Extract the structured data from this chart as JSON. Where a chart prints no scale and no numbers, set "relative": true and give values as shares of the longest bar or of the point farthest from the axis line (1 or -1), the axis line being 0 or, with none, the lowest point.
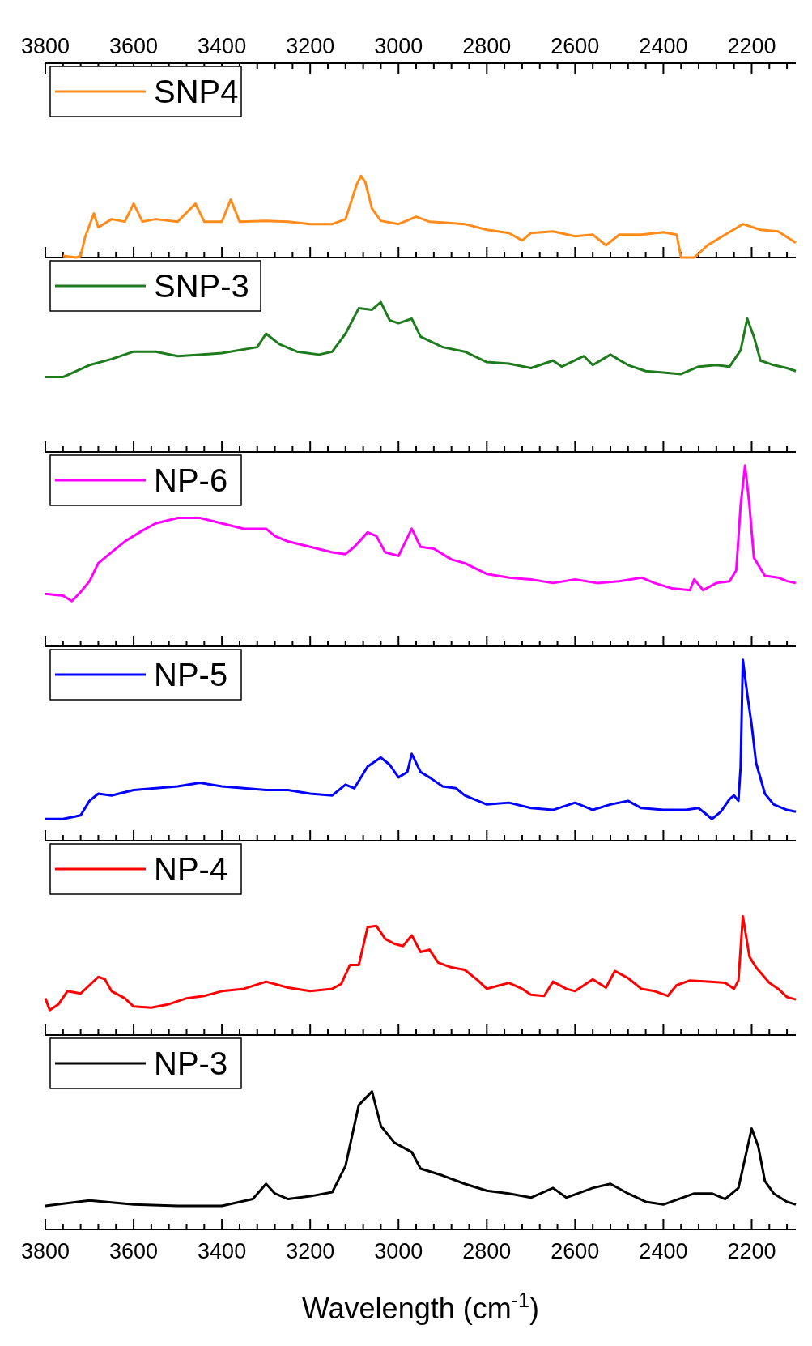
{
  "chart_data": [
    {
      "type": "line",
      "relative": true,
      "legend": "top left",
      "xlim": [
        3800,
        2100
      ],
      "xticks": [
        3800,
        {
          "value": 3760,
          "label": null
        },
        {
          "value": 3720,
          "label": null
        },
        {
          "value": 3680,
          "label": null
        },
        {
          "value": 3640,
          "label": null
        },
        3600,
        {
          "value": 3560,
          "label": null
        },
        {
          "value": 3520,
          "label": null
        },
        {
          "value": 3480,
          "label": null
        },
        {
          "value": 3440,
          "label": null
        },
        3400,
        {
          "value": 3360,
          "label": null
        },
        {
          "value": 3320,
          "label": null
        },
        {
          "value": 3280,
          "label": null
        },
        {
          "value": 3240,
          "label": null
        },
        3200,
        {
          "value": 3160,
          "label": null
        },
        {
          "value": 3120,
          "label": null
        },
        {
          "value": 3080,
          "label": null
        },
        {
          "value": 3040,
          "label": null
        },
        3000,
        {
          "value": 2960,
          "label": null
        },
        {
          "value": 2920,
          "label": null
        },
        {
          "value": 2880,
          "label": null
        },
        {
          "value": 2840,
          "label": null
        },
        2800,
        {
          "value": 2760,
          "label": null
        },
        {
          "value": 2720,
          "label": null
        },
        {
          "value": 2680,
          "label": null
        },
        {
          "value": 2640,
          "label": null
        },
        2600,
        {
          "value": 2560,
          "label": null
        },
        {
          "value": 2520,
          "label": null
        },
        {
          "value": 2480,
          "label": null
        },
        {
          "value": 2440,
          "label": null
        },
        2400,
        {
          "value": 2360,
          "label": null
        },
        {
          "value": 2320,
          "label": null
        },
        {
          "value": 2280,
          "label": null
        },
        {
          "value": 2240,
          "label": null
        },
        2200,
        {
          "value": 2160,
          "label": null
        },
        {
          "value": 2120,
          "label": null
        }
      ],
      "series": [
        {
          "name": "SNP4",
          "color": "#ff8c1a",
          "x": [
            3760,
            3730,
            3720,
            3710,
            3690,
            3680,
            3650,
            3620,
            3600,
            3580,
            3550,
            3500,
            3460,
            3440,
            3400,
            3380,
            3360,
            3300,
            3250,
            3200,
            3150,
            3120,
            3095,
            3085,
            3075,
            3060,
            3040,
            3000,
            2960,
            2930,
            2900,
            2850,
            2800,
            2750,
            2720,
            2700,
            2650,
            2600,
            2560,
            2530,
            2500,
            2450,
            2400,
            2370,
            2360,
            2330,
            2300,
            2260,
            2220,
            2180,
            2140,
            2100
          ],
          "values": [
            0.02,
            0,
            0.02,
            0.25,
            0.54,
            0.37,
            0.47,
            0.44,
            0.66,
            0.44,
            0.47,
            0.44,
            0.66,
            0.44,
            0.44,
            0.71,
            0.44,
            0.45,
            0.44,
            0.41,
            0.41,
            0.47,
            0.89,
            1,
            0.92,
            0.6,
            0.45,
            0.41,
            0.5,
            0.44,
            0.43,
            0.41,
            0.34,
            0.3,
            0.21,
            0.3,
            0.32,
            0.26,
            0.28,
            0.15,
            0.28,
            0.28,
            0.31,
            0.28,
            0,
            0,
            0.15,
            0.28,
            0.41,
            0.34,
            0.32,
            0.18
          ]
        }
      ]
    },
    {
      "type": "line",
      "relative": true,
      "legend": "top left",
      "tick_labels": false,
      "xlim": [
        3800,
        2100
      ],
      "xticks": [
        3800,
        3760,
        3720,
        3680,
        3640,
        3600,
        3560,
        3520,
        3480,
        3440,
        3400,
        3360,
        3320,
        3280,
        3240,
        3200,
        3160,
        3120,
        3080,
        3040,
        3000,
        2960,
        2920,
        2880,
        2840,
        2800,
        2760,
        2720,
        2680,
        2640,
        2600,
        2560,
        2520,
        2480,
        2440,
        2400,
        2360,
        2320,
        2280,
        2240,
        2200,
        2160,
        2120
      ],
      "series": [
        {
          "name": "SNP-3",
          "color": "#1e7b1e",
          "x": [
            3800,
            3760,
            3700,
            3650,
            3600,
            3550,
            3500,
            3450,
            3400,
            3320,
            3300,
            3270,
            3230,
            3180,
            3150,
            3120,
            3090,
            3060,
            3040,
            3020,
            3000,
            2970,
            2950,
            2900,
            2850,
            2800,
            2750,
            2700,
            2650,
            2630,
            2580,
            2560,
            2520,
            2480,
            2440,
            2400,
            2360,
            2320,
            2280,
            2250,
            2225,
            2210,
            2195,
            2180,
            2150,
            2120,
            2100
          ],
          "values": [
            0.5,
            0.5,
            0.58,
            0.62,
            0.67,
            0.67,
            0.64,
            0.65,
            0.66,
            0.7,
            0.79,
            0.72,
            0.67,
            0.65,
            0.67,
            0.79,
            0.96,
            0.95,
            1,
            0.88,
            0.86,
            0.89,
            0.77,
            0.7,
            0.67,
            0.6,
            0.59,
            0.56,
            0.61,
            0.57,
            0.64,
            0.58,
            0.65,
            0.58,
            0.54,
            0.53,
            0.52,
            0.57,
            0.58,
            0.57,
            0.68,
            0.89,
            0.77,
            0.61,
            0.58,
            0.56,
            0.54
          ]
        }
      ]
    },
    {
      "type": "line",
      "relative": true,
      "legend": "top left",
      "tick_labels": false,
      "xlim": [
        3800,
        2100
      ],
      "xticks": [
        3800,
        3760,
        3720,
        3680,
        3640,
        3600,
        3560,
        3520,
        3480,
        3440,
        3400,
        3360,
        3320,
        3280,
        3240,
        3200,
        3160,
        3120,
        3080,
        3040,
        3000,
        2960,
        2920,
        2880,
        2840,
        2800,
        2760,
        2720,
        2680,
        2640,
        2600,
        2560,
        2520,
        2480,
        2440,
        2400,
        2360,
        2320,
        2280,
        2240,
        2200,
        2160,
        2120
      ],
      "series": [
        {
          "name": "NP-6",
          "color": "#ff00ff",
          "x": [
            3800,
            3760,
            3740,
            3720,
            3700,
            3680,
            3650,
            3620,
            3580,
            3550,
            3500,
            3450,
            3400,
            3350,
            3300,
            3280,
            3250,
            3200,
            3150,
            3120,
            3100,
            3070,
            3050,
            3030,
            3000,
            2970,
            2950,
            2920,
            2880,
            2850,
            2800,
            2750,
            2700,
            2650,
            2600,
            2550,
            2500,
            2450,
            2420,
            2380,
            2340,
            2330,
            2310,
            2280,
            2250,
            2235,
            2225,
            2215,
            2205,
            2195,
            2170,
            2140,
            2120,
            2100
          ],
          "values": [
            0.29,
            0.28,
            0.25,
            0.3,
            0.36,
            0.46,
            0.52,
            0.58,
            0.64,
            0.68,
            0.71,
            0.71,
            0.68,
            0.65,
            0.65,
            0.61,
            0.58,
            0.55,
            0.52,
            0.51,
            0.55,
            0.63,
            0.61,
            0.52,
            0.5,
            0.65,
            0.55,
            0.54,
            0.48,
            0.46,
            0.4,
            0.38,
            0.37,
            0.35,
            0.37,
            0.35,
            0.36,
            0.38,
            0.35,
            0.32,
            0.31,
            0.37,
            0.31,
            0.35,
            0.36,
            0.42,
            0.78,
            1,
            0.78,
            0.49,
            0.39,
            0.38,
            0.36,
            0.35
          ]
        }
      ]
    },
    {
      "type": "line",
      "relative": true,
      "legend": "top left",
      "tick_labels": false,
      "xlim": [
        3800,
        2100
      ],
      "xticks": [
        3800,
        3760,
        3720,
        3680,
        3640,
        3600,
        3560,
        3520,
        3480,
        3440,
        3400,
        3360,
        3320,
        3280,
        3240,
        3200,
        3160,
        3120,
        3080,
        3040,
        3000,
        2960,
        2920,
        2880,
        2840,
        2800,
        2760,
        2720,
        2680,
        2640,
        2600,
        2560,
        2520,
        2480,
        2440,
        2400,
        2360,
        2320,
        2280,
        2240,
        2200,
        2160,
        2120
      ],
      "series": [
        {
          "name": "NP-5",
          "color": "#0000ff",
          "x": [
            3800,
            3760,
            3720,
            3700,
            3680,
            3650,
            3600,
            3550,
            3500,
            3450,
            3400,
            3350,
            3300,
            3250,
            3200,
            3150,
            3120,
            3100,
            3070,
            3040,
            3020,
            3000,
            2980,
            2970,
            2950,
            2930,
            2900,
            2870,
            2850,
            2800,
            2750,
            2700,
            2650,
            2600,
            2560,
            2520,
            2480,
            2450,
            2400,
            2350,
            2320,
            2300,
            2290,
            2270,
            2250,
            2240,
            2230,
            2225,
            2220,
            2210,
            2200,
            2190,
            2170,
            2150,
            2120,
            2100
          ],
          "values": [
            0.12,
            0.12,
            0.14,
            0.22,
            0.26,
            0.25,
            0.28,
            0.29,
            0.3,
            0.32,
            0.3,
            0.29,
            0.28,
            0.28,
            0.26,
            0.25,
            0.31,
            0.29,
            0.41,
            0.46,
            0.42,
            0.35,
            0.38,
            0.48,
            0.38,
            0.35,
            0.3,
            0.29,
            0.25,
            0.2,
            0.21,
            0.18,
            0.17,
            0.21,
            0.17,
            0.2,
            0.22,
            0.18,
            0.17,
            0.17,
            0.18,
            0.14,
            0.12,
            0.16,
            0.23,
            0.25,
            0.22,
            0.41,
            1,
            0.81,
            0.64,
            0.43,
            0.26,
            0.2,
            0.17,
            0.16
          ]
        }
      ]
    },
    {
      "type": "line",
      "relative": true,
      "legend": "top left",
      "tick_labels": false,
      "xlim": [
        3800,
        2100
      ],
      "xticks": [
        3800,
        3760,
        3720,
        3680,
        3640,
        3600,
        3560,
        3520,
        3480,
        3440,
        3400,
        3360,
        3320,
        3280,
        3240,
        3200,
        3160,
        3120,
        3080,
        3040,
        3000,
        2960,
        2920,
        2880,
        2840,
        2800,
        2760,
        2720,
        2680,
        2640,
        2600,
        2560,
        2520,
        2480,
        2440,
        2400,
        2360,
        2320,
        2280,
        2240,
        2200,
        2160,
        2120
      ],
      "series": [
        {
          "name": "NP-4",
          "color": "#ff0000",
          "x": [
            3800,
            3790,
            3770,
            3750,
            3720,
            3700,
            3680,
            3665,
            3650,
            3620,
            3600,
            3560,
            3520,
            3480,
            3440,
            3400,
            3350,
            3300,
            3250,
            3200,
            3150,
            3130,
            3110,
            3090,
            3070,
            3050,
            3030,
            3010,
            2990,
            2970,
            2950,
            2930,
            2910,
            2880,
            2850,
            2820,
            2800,
            2770,
            2750,
            2720,
            2700,
            2670,
            2650,
            2620,
            2600,
            2560,
            2530,
            2510,
            2480,
            2450,
            2420,
            2390,
            2370,
            2340,
            2300,
            2260,
            2240,
            2230,
            2220,
            2205,
            2190,
            2160,
            2140,
            2120,
            2100
          ],
          "values": [
            0.31,
            0.21,
            0.26,
            0.37,
            0.35,
            0.42,
            0.49,
            0.47,
            0.37,
            0.31,
            0.24,
            0.23,
            0.26,
            0.31,
            0.33,
            0.37,
            0.39,
            0.45,
            0.4,
            0.37,
            0.39,
            0.43,
            0.59,
            0.59,
            0.91,
            0.92,
            0.81,
            0.77,
            0.75,
            0.84,
            0.7,
            0.72,
            0.61,
            0.57,
            0.55,
            0.46,
            0.39,
            0.42,
            0.44,
            0.39,
            0.34,
            0.33,
            0.45,
            0.39,
            0.37,
            0.47,
            0.4,
            0.54,
            0.48,
            0.39,
            0.37,
            0.33,
            0.42,
            0.46,
            0.45,
            0.44,
            0.39,
            0.46,
            1,
            0.66,
            0.57,
            0.44,
            0.39,
            0.32,
            0.3
          ]
        }
      ]
    },
    {
      "type": "line",
      "relative": true,
      "legend": "top left",
      "xlabel": "Wavelength (cm$^{-1}$)",
      "xlim": [
        3800,
        2100
      ],
      "xticks": [
        3800,
        {
          "value": 3760,
          "label": null
        },
        {
          "value": 3720,
          "label": null
        },
        {
          "value": 3680,
          "label": null
        },
        {
          "value": 3640,
          "label": null
        },
        3600,
        {
          "value": 3560,
          "label": null
        },
        {
          "value": 3520,
          "label": null
        },
        {
          "value": 3480,
          "label": null
        },
        {
          "value": 3440,
          "label": null
        },
        3400,
        {
          "value": 3360,
          "label": null
        },
        {
          "value": 3320,
          "label": null
        },
        {
          "value": 3280,
          "label": null
        },
        {
          "value": 3240,
          "label": null
        },
        3200,
        {
          "value": 3160,
          "label": null
        },
        {
          "value": 3120,
          "label": null
        },
        {
          "value": 3080,
          "label": null
        },
        {
          "value": 3040,
          "label": null
        },
        3000,
        {
          "value": 2960,
          "label": null
        },
        {
          "value": 2920,
          "label": null
        },
        {
          "value": 2880,
          "label": null
        },
        {
          "value": 2840,
          "label": null
        },
        2800,
        {
          "value": 2760,
          "label": null
        },
        {
          "value": 2720,
          "label": null
        },
        {
          "value": 2680,
          "label": null
        },
        {
          "value": 2640,
          "label": null
        },
        2600,
        {
          "value": 2560,
          "label": null
        },
        {
          "value": 2520,
          "label": null
        },
        {
          "value": 2480,
          "label": null
        },
        {
          "value": 2440,
          "label": null
        },
        2400,
        {
          "value": 2360,
          "label": null
        },
        {
          "value": 2320,
          "label": null
        },
        {
          "value": 2280,
          "label": null
        },
        {
          "value": 2240,
          "label": null
        },
        2200,
        {
          "value": 2160,
          "label": null
        },
        {
          "value": 2120,
          "label": null
        }
      ],
      "series": [
        {
          "name": "NP-3",
          "color": "#000000",
          "x": [
            3800,
            3700,
            3600,
            3500,
            3400,
            3330,
            3300,
            3280,
            3250,
            3200,
            3150,
            3120,
            3090,
            3060,
            3040,
            3010,
            2970,
            2950,
            2900,
            2850,
            2800,
            2750,
            2700,
            2650,
            2620,
            2560,
            2520,
            2480,
            2440,
            2400,
            2330,
            2290,
            2260,
            2230,
            2200,
            2185,
            2170,
            2150,
            2120,
            2100
          ],
          "values": [
            0.17,
            0.21,
            0.18,
            0.17,
            0.17,
            0.22,
            0.33,
            0.26,
            0.22,
            0.24,
            0.27,
            0.46,
            0.9,
            1,
            0.75,
            0.63,
            0.56,
            0.44,
            0.39,
            0.33,
            0.28,
            0.26,
            0.23,
            0.3,
            0.23,
            0.3,
            0.33,
            0.26,
            0.2,
            0.18,
            0.26,
            0.26,
            0.22,
            0.3,
            0.73,
            0.6,
            0.35,
            0.26,
            0.2,
            0.18
          ]
        }
      ]
    }
  ]
}
